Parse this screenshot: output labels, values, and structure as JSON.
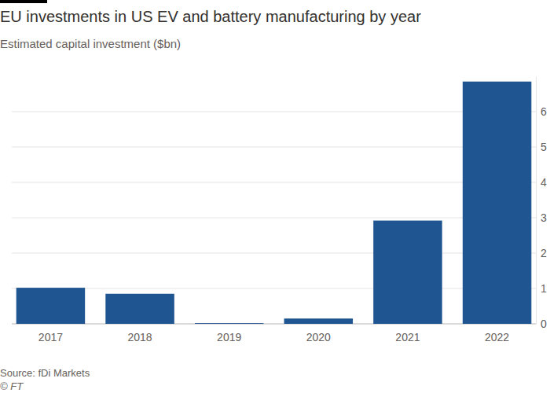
{
  "chart_data": {
    "type": "bar",
    "title": "EU investments in US EV and battery manufacturing by year",
    "subtitle": "Estimated capital investment ($bn)",
    "source": "Source: fDi Markets",
    "credit": "© FT",
    "categories": [
      "2017",
      "2018",
      "2019",
      "2020",
      "2021",
      "2022"
    ],
    "values": [
      1.02,
      0.85,
      0.02,
      0.15,
      2.92,
      6.85
    ],
    "color": "#1f5591",
    "ylim": [
      0,
      7
    ],
    "yticks": [
      0,
      1,
      2,
      3,
      4,
      5,
      6
    ],
    "grid": true
  }
}
